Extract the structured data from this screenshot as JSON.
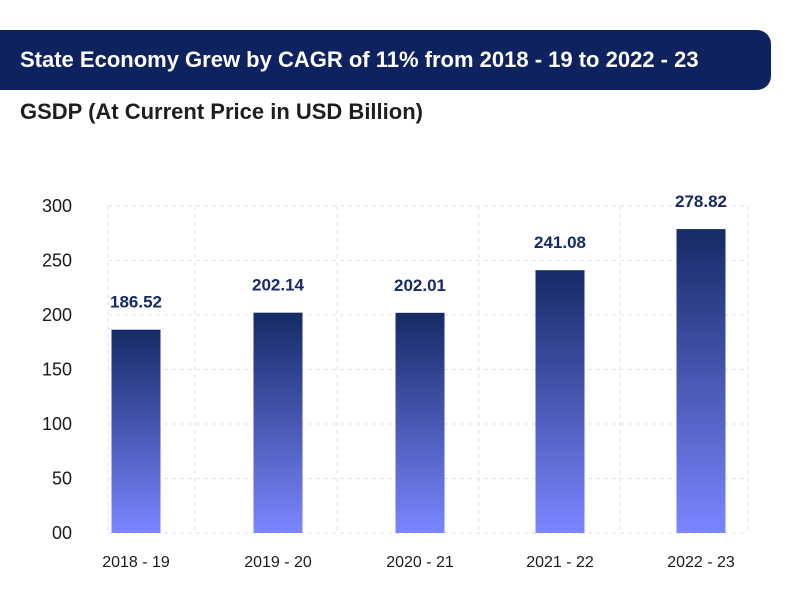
{
  "header": {
    "title": "State Economy Grew by CAGR of 11% from 2018 - 19 to 2022 - 23",
    "subtitle": "GSDP (At Current Price in USD Billion)"
  },
  "colors": {
    "banner": "#0f2260",
    "bar_top": "#152a66",
    "bar_bottom": "#7b86ff",
    "label": "#152a66"
  },
  "chart_data": {
    "type": "bar",
    "title": "GSDP (At Current Price in USD Billion)",
    "xlabel": "",
    "ylabel": "",
    "categories": [
      "2018 - 19",
      "2019 - 20",
      "2020 - 21",
      "2021 - 22",
      "2022 - 23"
    ],
    "values": [
      186.52,
      202.14,
      202.01,
      241.08,
      278.82
    ],
    "value_labels": [
      "186.52",
      "202.14",
      "202.01",
      "241.08",
      "278.82"
    ],
    "y_ticks": [
      0,
      50,
      100,
      150,
      200,
      250,
      300
    ],
    "y_tick_labels": [
      "00",
      "50",
      "100",
      "150",
      "200",
      "250",
      "300"
    ],
    "ylim": [
      0,
      300
    ],
    "grid": true
  }
}
